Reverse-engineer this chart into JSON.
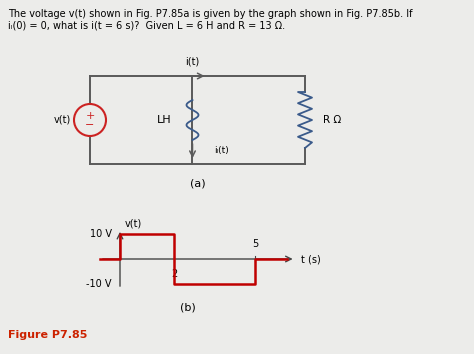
{
  "title_text": "The voltage v(t) shown in Fig. P7.85a is given by the graph shown in Fig. P7.85b. If\niₗ(0) = 0, what is i(t = 6 s)?  Given L = 6 H and R = 13 Ω.",
  "figure_label": "Figure P7.85",
  "subfig_a_label": "(a)",
  "subfig_b_label": "(b)",
  "graph_color": "#c00000",
  "circuit_wire_color": "#5a5a5a",
  "circuit_component_color": "#3a5a8a",
  "source_color": "#cc2222",
  "bg_color": "#ececea",
  "v_pos_label": "10 V",
  "v_neg_label": "-10 V",
  "t_axis_label": "t (s)",
  "v_axis_label": "v(t)",
  "iL_label": "iₗ(t)",
  "it_label": "i(t)",
  "vt_label": "v(t)",
  "L_label": "LH",
  "R_label": "R Ω"
}
